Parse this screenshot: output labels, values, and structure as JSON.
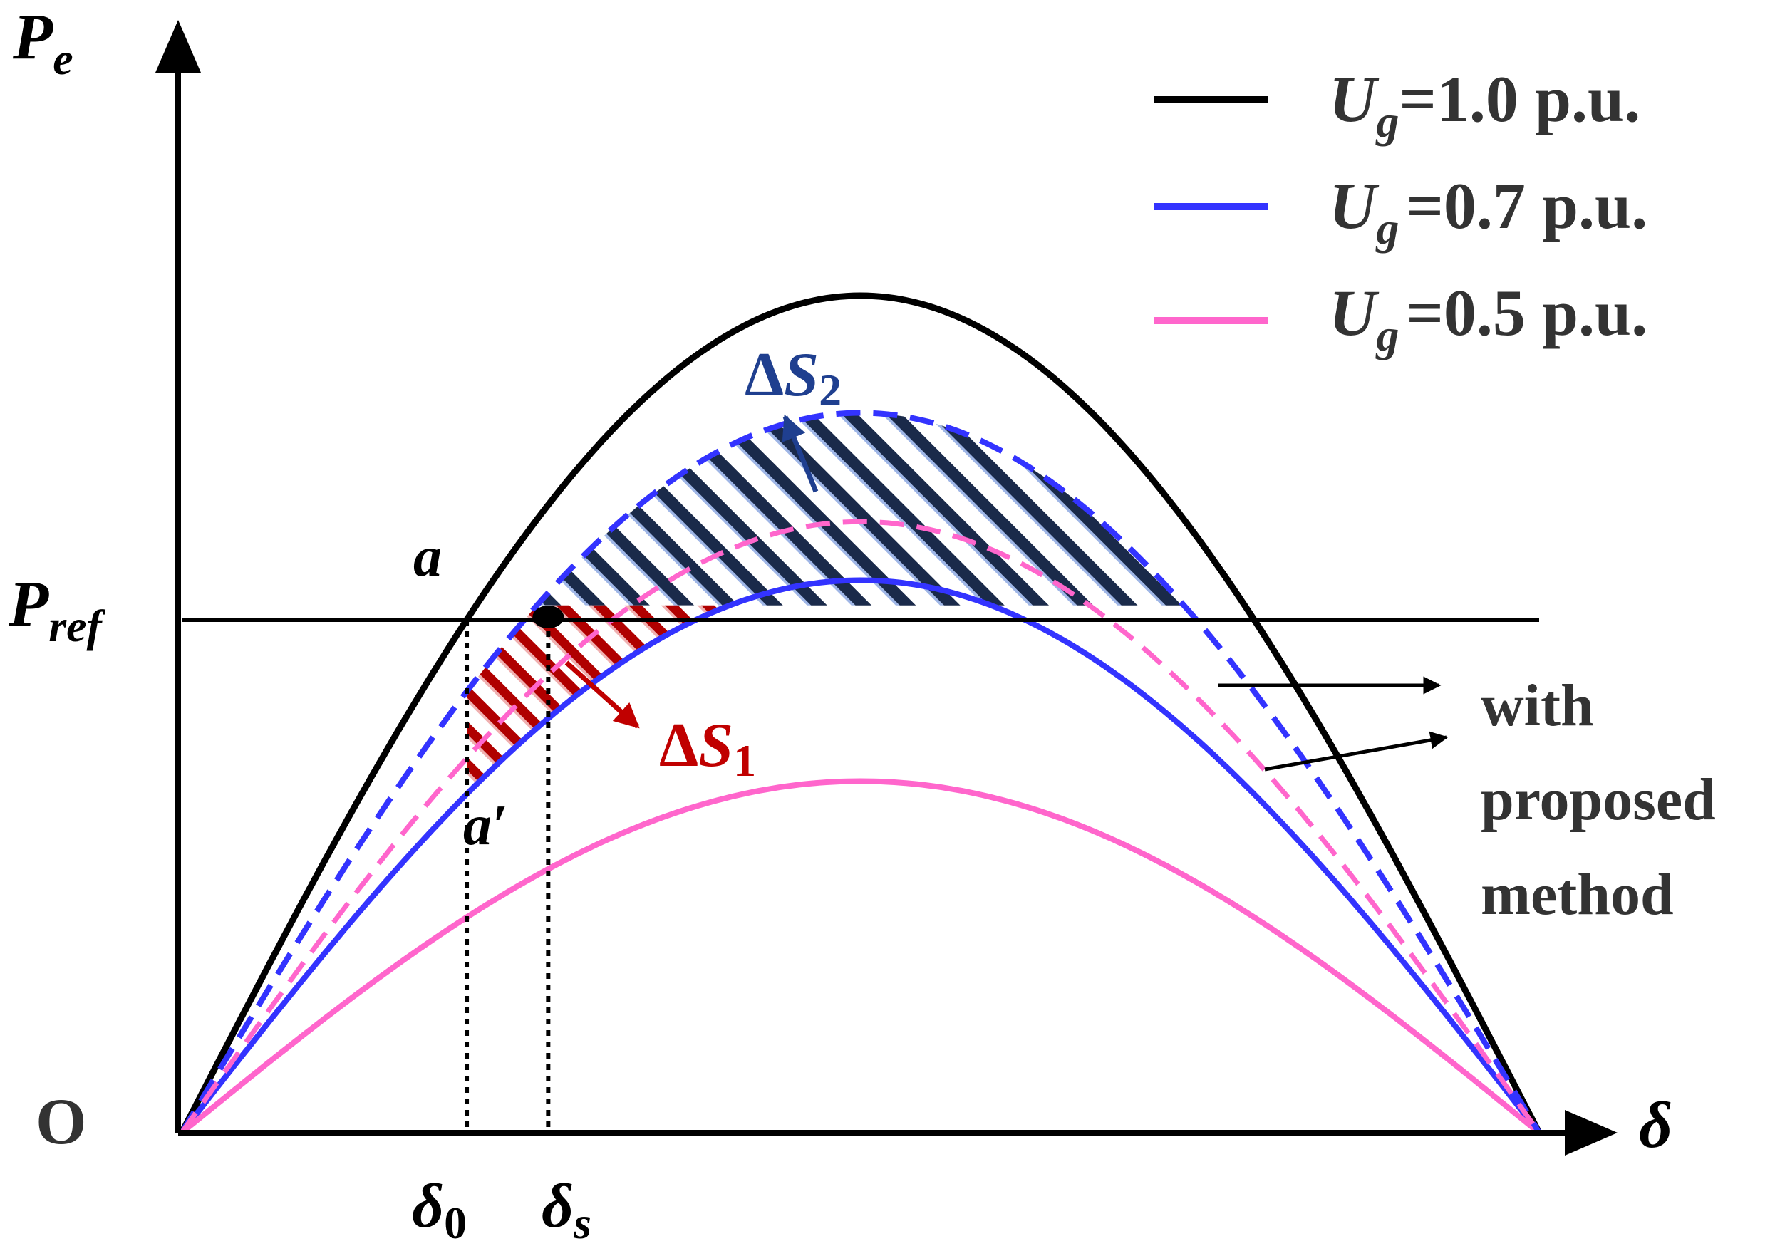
{
  "labels": {
    "y_axis_main": "P",
    "y_axis_sub": "e",
    "x_axis": "δ",
    "origin": "O",
    "pref_main": "P",
    "pref_sub": "ref",
    "point_a": "a",
    "point_a_prime": "a′",
    "delta0_main": "δ",
    "delta0_sub": "0",
    "deltas_main": "δ",
    "deltas_sub": "s",
    "ds1_delta": "Δ",
    "ds1_main": "S",
    "ds1_sub": "1",
    "ds2_delta": "Δ",
    "ds2_main": "S",
    "ds2_sub": "2",
    "with_line1": "with",
    "with_line2": "proposed",
    "with_line3": "method"
  },
  "legend": [
    {
      "main": "U",
      "sub": "g",
      "text": "=1.0 p.u.",
      "color": "#000000"
    },
    {
      "main": "U",
      "sub": "g",
      "text": "=0.7 p.u.",
      "color": "#3333ff"
    },
    {
      "main": "U",
      "sub": "g",
      "text": "=0.5 p.u.",
      "color": "#ff66cc"
    }
  ],
  "colors": {
    "axis": "#000000",
    "ug10": "#000000",
    "ug07": "#3333ff",
    "ug05": "#ff66cc",
    "ds1": "#c00000",
    "ds2": "#1f3f8f",
    "ds2_hatch": "#1a2a4a"
  },
  "chart_data": {
    "type": "line",
    "x_unit": "δ (0 to π)",
    "series": [
      {
        "name": "Ug=1.0 p.u.",
        "style": "solid",
        "color": "#000000",
        "peak": 1.0
      },
      {
        "name": "Ug=0.7 p.u.",
        "style": "solid",
        "color": "#3333ff",
        "peak": 0.66
      },
      {
        "name": "Ug=0.5 p.u.",
        "style": "solid",
        "color": "#ff66cc",
        "peak": 0.42
      },
      {
        "name": "Ug=0.7 p.u. (with proposed method)",
        "style": "dashed",
        "color": "#3333ff",
        "peak": 0.86
      },
      {
        "name": "Ug=0.5 p.u. (with proposed method)",
        "style": "dashed",
        "color": "#ff66cc",
        "peak": 0.73
      }
    ],
    "pref": 0.63,
    "delta0": 0.21,
    "delta_s": 0.27
  }
}
